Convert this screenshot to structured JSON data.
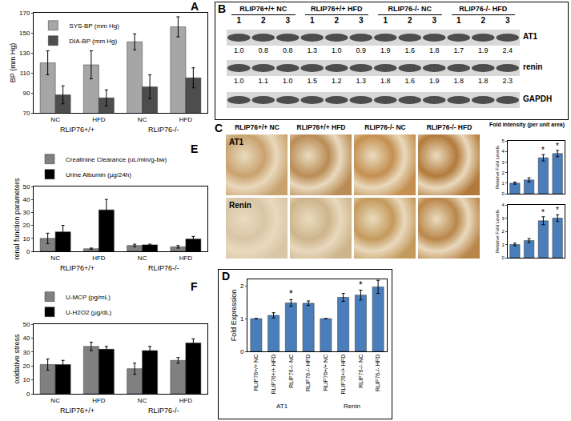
{
  "chart_data": [
    {
      "panel": "A",
      "type": "bar",
      "categories": [
        "NC",
        "HFD",
        "NC",
        "HFD"
      ],
      "groups": [
        "RLIP76+/+",
        "RLIP76+/+",
        "RLIP76-/-",
        "RLIP76-/-"
      ],
      "y_label": "BP (mm Hg)",
      "series": [
        {
          "name": "SYS-BP (mm Hg)",
          "color": "#a6a6a6",
          "values": [
            120,
            118,
            141,
            156
          ],
          "errors": [
            12,
            14,
            8,
            10
          ]
        },
        {
          "name": "DIA-BP (mm Hg)",
          "color": "#4d4d4d",
          "values": [
            88,
            85,
            96,
            105
          ],
          "errors": [
            9,
            8,
            12,
            10
          ]
        }
      ],
      "ylim": [
        70,
        170
      ],
      "yticks": [
        70,
        90,
        110,
        130,
        150,
        170
      ],
      "grid": false,
      "legend": "upper left"
    },
    {
      "panel": "E",
      "type": "bar",
      "categories": [
        "NC",
        "HFD",
        "NC",
        "HFD"
      ],
      "groups": [
        "RLIP76+/+",
        "RLIP76+/+",
        "RLIP76-/-",
        "RLIP76-/-"
      ],
      "y_label": "renal function parameters",
      "series": [
        {
          "name": "Creatinine Clearance (uL/min/g-bw)",
          "color": "#808080",
          "values": [
            10,
            2,
            4.5,
            3.5
          ],
          "errors": [
            4,
            0.5,
            1,
            1
          ]
        },
        {
          "name": "Urine Albumin (µg/24h)",
          "color": "#000000",
          "values": [
            15,
            32,
            5,
            9.5
          ],
          "errors": [
            5,
            8,
            0.5,
            2
          ]
        }
      ],
      "ylim": [
        0,
        50
      ],
      "yticks": [
        0,
        10,
        20,
        30,
        40,
        50
      ],
      "grid": false,
      "legend": "top"
    },
    {
      "panel": "F",
      "type": "bar",
      "categories": [
        "NC",
        "HFD",
        "NC",
        "HFD"
      ],
      "groups": [
        "RLIP76+/+",
        "RLIP76+/+",
        "RLIP76-/-",
        "RLIP76-/-"
      ],
      "y_label": "oxidative stress",
      "series": [
        {
          "name": "U-MCP (pg/mL)",
          "color": "#808080",
          "values": [
            21,
            34,
            18,
            24
          ],
          "errors": [
            4,
            3,
            4,
            2
          ]
        },
        {
          "name": "U-H2O2 (µg/dL)",
          "color": "#000000",
          "values": [
            21,
            32,
            31,
            36.5
          ],
          "errors": [
            3,
            2,
            3,
            3
          ]
        }
      ],
      "ylim": [
        0,
        50
      ],
      "yticks": [
        0,
        10,
        20,
        30,
        40,
        50
      ],
      "grid": false,
      "legend": "top"
    },
    {
      "panel": "D",
      "type": "bar",
      "categories": [
        "RLIP76+/+ NC",
        "RLIP76+/+ HFD",
        "RLIP76-/- NC",
        "RLIP76-/- HFD",
        "RLIP76+/+ NC",
        "RLIP76+/+ HFD",
        "RLIP76-/- NC",
        "RLIP76-/- HFD"
      ],
      "groups": [
        "AT1",
        "AT1",
        "AT1",
        "AT1",
        "Renin",
        "Renin",
        "Renin",
        "Renin"
      ],
      "y_label": "Fold Expression",
      "values": [
        1,
        1.1,
        1.48,
        1.47,
        1,
        1.65,
        1.72,
        1.97
      ],
      "errors": [
        0,
        0.08,
        0.1,
        0.07,
        0,
        0.12,
        0.15,
        0.2
      ],
      "color": "#4a7ebb",
      "ylim": [
        0,
        2.2
      ],
      "yticks": [
        0,
        1,
        2
      ],
      "grid": false,
      "annotations": [
        {
          "x": 2,
          "text": "*"
        },
        {
          "x": 6,
          "text": "*"
        }
      ]
    },
    {
      "panel": "C",
      "type": "bar",
      "title": "Fold intensity (per unit area)",
      "categories": [
        null,
        null,
        null,
        null
      ],
      "y_label": "Relative Fold Levels",
      "values": [
        1,
        1.3,
        3.4,
        3.8
      ],
      "errors": [
        0.1,
        0.2,
        0.3,
        0.3
      ],
      "color": "#4a7ebb",
      "ylim": [
        0,
        5
      ],
      "yticks": [
        0,
        1,
        2,
        3,
        4,
        5
      ],
      "grid": false,
      "tick_labels": "y",
      "annotations": [
        {
          "x": 2,
          "text": "*"
        },
        {
          "x": 3,
          "text": "*"
        }
      ]
    },
    {
      "panel": "C",
      "type": "bar",
      "categories": [
        null,
        null,
        null,
        null
      ],
      "y_label": "Relative Fold Levels",
      "values": [
        1,
        1.3,
        2.8,
        3.0
      ],
      "errors": [
        0.1,
        0.15,
        0.3,
        0.25
      ],
      "color": "#4a7ebb",
      "ylim": [
        0,
        4
      ],
      "yticks": [
        0,
        1,
        2,
        3,
        4
      ],
      "grid": false,
      "tick_labels": "y",
      "annotations": [
        {
          "x": 2,
          "text": "*"
        },
        {
          "x": 3,
          "text": "*"
        }
      ]
    }
  ],
  "blot": {
    "panel": "B",
    "groups": [
      "RLIP76+/+ NC",
      "RLIP76+/+ HFD",
      "RLIP76-/- NC",
      "RLIP76-/- HFD"
    ],
    "lanes": [
      "1",
      "2",
      "3"
    ],
    "rows": [
      {
        "label": "AT1",
        "values": [
          "1.0",
          "0.8",
          "0.8",
          "1.3",
          "1.0",
          "0.9",
          "1.9",
          "1.6",
          "1.8",
          "1.7",
          "1.9",
          "2.4"
        ]
      },
      {
        "label": "renin",
        "values": [
          "1.0",
          "1.1",
          "1.0",
          "1.5",
          "1.2",
          "1.3",
          "1.8",
          "1.6",
          "1.9",
          "1.8",
          "1.8",
          "2.3"
        ]
      },
      {
        "label": "GAPDH"
      }
    ]
  },
  "ihc": {
    "panel": "C",
    "columns": [
      "RLIP76+/+ NC",
      "RLIP76+/+ HFD",
      "RLIP76-/- NC",
      "RLIP76-/- HFD"
    ],
    "rows": [
      "AT1",
      "Renin"
    ]
  }
}
